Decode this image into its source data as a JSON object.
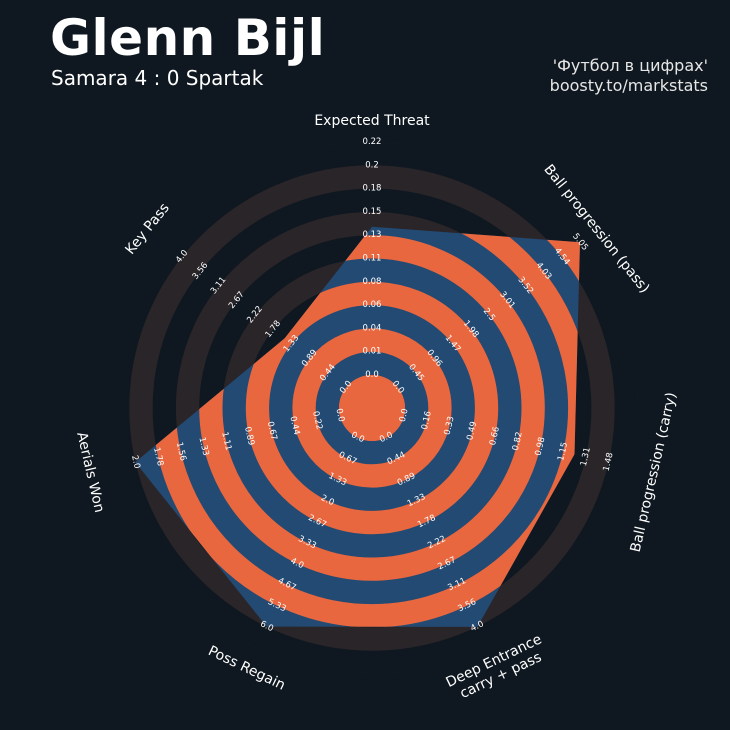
{
  "header": {
    "title": "Glenn Bijl",
    "subtitle": "Samara 4 : 0 Spartak",
    "credit_line1": "'Футбол в цифрах'",
    "credit_line2": "boosty.to/markstats"
  },
  "colors": {
    "background": "#0f1820",
    "ring_outer": "#2a2529",
    "ring_band": "#e8673f",
    "polygon_fill": "#234a72"
  },
  "chart_data": {
    "type": "radar",
    "title": "Glenn Bijl",
    "ring_count": 10,
    "params": [
      {
        "label_lines": [
          "Expected Threat"
        ],
        "ticks": [
          "0.0",
          "0.01",
          "0.04",
          "0.06",
          "0.08",
          "0.11",
          "0.13",
          "0.15",
          "0.18",
          "0.2",
          "0.22"
        ],
        "value": 0.14,
        "range": [
          0.0,
          0.22
        ]
      },
      {
        "label_lines": [
          "Ball progression (pass)"
        ],
        "ticks": [
          "0.0",
          "0.45",
          "0.96",
          "1.47",
          "1.98",
          "2.5",
          "3.01",
          "3.52",
          "4.03",
          "4.54",
          "5.05"
        ],
        "value": 5.05,
        "range": [
          0.0,
          5.05
        ]
      },
      {
        "label_lines": [
          "Ball progression (carry)"
        ],
        "ticks": [
          "0.0",
          "0.16",
          "0.33",
          "0.49",
          "0.66",
          "0.82",
          "0.98",
          "1.15",
          "1.31",
          "1.48"
        ],
        "value": 1.23,
        "range": [
          0.0,
          1.64
        ]
      },
      {
        "label_lines": [
          "Deep Entrance",
          "carry + pass"
        ],
        "ticks": [
          "0.0",
          "0.44",
          "0.89",
          "1.33",
          "1.78",
          "2.22",
          "2.67",
          "3.11",
          "3.56",
          "4.0"
        ],
        "value": 4.0,
        "range": [
          0.0,
          4.44
        ]
      },
      {
        "label_lines": [
          "Poss Regain"
        ],
        "ticks": [
          "0.0",
          "0.67",
          "1.33",
          "2.0",
          "2.67",
          "3.33",
          "4.0",
          "4.67",
          "5.33",
          "6.0"
        ],
        "value": 6.0,
        "range": [
          0.0,
          6.67
        ]
      },
      {
        "label_lines": [
          "Aerials Won"
        ],
        "ticks": [
          "0.0",
          "0.22",
          "0.44",
          "0.67",
          "0.89",
          "1.11",
          "1.33",
          "1.56",
          "1.78",
          "2.0"
        ],
        "value": 2.0,
        "range": [
          0.0,
          2.22
        ]
      },
      {
        "label_lines": [
          "Key Pass"
        ],
        "ticks": [
          "0.0",
          "0.44",
          "0.89",
          "1.33",
          "1.78",
          "2.22",
          "2.67",
          "3.11",
          "3.56",
          "4.0"
        ],
        "value": 1.5,
        "range": [
          0.0,
          4.44
        ]
      }
    ]
  }
}
